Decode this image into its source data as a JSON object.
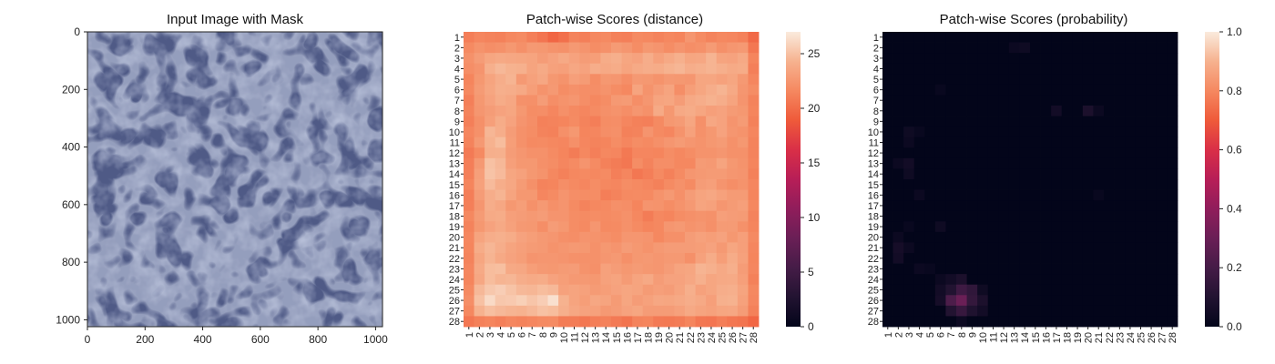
{
  "chart_data": [
    {
      "type": "image",
      "title": "Input Image with Mask",
      "x_ticks": [
        0,
        200,
        400,
        600,
        800,
        1000
      ],
      "y_ticks": [
        0,
        200,
        400,
        600,
        800,
        1000
      ],
      "xlim": [
        0,
        1024
      ],
      "ylim": [
        0,
        1024
      ],
      "image_description": "blue leather texture",
      "colors": {
        "leather_base": "#4f5a86",
        "leather_crease": "#7e89b2",
        "leather_shadow": "#3a4470"
      }
    },
    {
      "type": "heatmap",
      "title": "Patch-wise Scores (distance)",
      "rows": [
        "1",
        "2",
        "3",
        "4",
        "5",
        "6",
        "7",
        "8",
        "9",
        "10",
        "11",
        "12",
        "13",
        "14",
        "15",
        "16",
        "17",
        "18",
        "19",
        "20",
        "21",
        "22",
        "23",
        "24",
        "25",
        "26",
        "27",
        "28"
      ],
      "cols": [
        "1",
        "2",
        "3",
        "4",
        "5",
        "6",
        "7",
        "8",
        "9",
        "10",
        "11",
        "12",
        "13",
        "14",
        "15",
        "16",
        "17",
        "18",
        "19",
        "20",
        "21",
        "22",
        "23",
        "24",
        "25",
        "26",
        "27",
        "28"
      ],
      "vmin": 0,
      "vmax": 27,
      "colorbar_ticks": [
        0,
        5,
        10,
        15,
        20,
        25
      ],
      "colormap": "rocket",
      "values": [
        [
          21.0,
          21.5,
          21.3,
          21.2,
          21.6,
          21.8,
          21.1,
          20.5,
          19.6,
          20.2,
          21.3,
          21.1,
          21.6,
          21.7,
          21.2,
          21.1,
          21.7,
          21.6,
          21.3,
          21.6,
          21.4,
          22.5,
          21.8,
          21.3,
          21.6,
          21.5,
          21.2,
          19.8
        ],
        [
          21.7,
          22.3,
          22.0,
          22.2,
          22.6,
          22.1,
          22.7,
          22.6,
          22.3,
          22.2,
          22.7,
          22.4,
          21.9,
          22.2,
          22.8,
          22.5,
          21.9,
          22.6,
          22.4,
          21.9,
          22.4,
          22.0,
          22.2,
          22.8,
          22.1,
          22.5,
          22.7,
          20.6
        ],
        [
          22.2,
          22.9,
          23.5,
          23.7,
          23.6,
          23.5,
          23.4,
          22.9,
          23.3,
          23.7,
          23.3,
          22.9,
          23.0,
          23.9,
          24.1,
          23.5,
          23.3,
          24.0,
          23.2,
          23.7,
          24.2,
          23.5,
          23.6,
          24.4,
          23.4,
          23.3,
          23.7,
          21.4
        ],
        [
          22.0,
          22.4,
          24.1,
          24.6,
          24.3,
          24.2,
          23.4,
          23.8,
          23.2,
          23.1,
          23.6,
          23.3,
          24.0,
          23.7,
          23.9,
          23.4,
          23.8,
          24.0,
          23.9,
          24.3,
          24.5,
          24.0,
          24.2,
          24.4,
          24.1,
          23.8,
          23.9,
          21.1
        ],
        [
          21.4,
          22.6,
          23.4,
          24.0,
          24.4,
          22.7,
          23.2,
          23.6,
          22.6,
          22.3,
          23.1,
          22.8,
          21.9,
          22.6,
          22.5,
          22.0,
          22.7,
          22.6,
          22.3,
          22.7,
          22.6,
          22.5,
          23.5,
          23.5,
          23.2,
          23.5,
          22.7,
          21.5
        ],
        [
          21.6,
          22.8,
          23.5,
          24.1,
          24.0,
          23.7,
          23.0,
          22.3,
          22.7,
          21.9,
          22.2,
          22.0,
          22.0,
          22.3,
          21.9,
          21.6,
          23.4,
          22.3,
          22.9,
          23.4,
          22.0,
          23.0,
          23.5,
          24.0,
          24.4,
          23.7,
          22.5,
          21.9
        ],
        [
          21.1,
          22.6,
          23.3,
          23.9,
          23.6,
          22.2,
          22.1,
          22.9,
          22.0,
          22.3,
          22.5,
          22.0,
          21.6,
          21.9,
          22.7,
          22.8,
          22.0,
          22.5,
          23.4,
          23.5,
          22.9,
          23.7,
          24.0,
          24.3,
          24.0,
          23.4,
          22.4,
          21.3
        ],
        [
          21.3,
          22.5,
          22.9,
          23.3,
          23.5,
          22.6,
          21.9,
          22.0,
          21.5,
          22.1,
          21.7,
          21.5,
          21.8,
          22.1,
          22.3,
          22.0,
          22.5,
          22.2,
          23.8,
          22.6,
          23.7,
          23.9,
          23.5,
          23.1,
          23.3,
          22.8,
          22.6,
          21.4
        ],
        [
          21.1,
          22.1,
          23.1,
          23.9,
          23.3,
          22.4,
          22.0,
          21.2,
          21.3,
          21.4,
          21.8,
          21.3,
          21.0,
          21.9,
          22.0,
          21.5,
          21.2,
          21.1,
          21.7,
          22.6,
          22.8,
          23.5,
          22.1,
          23.6,
          23.3,
          22.4,
          22.8,
          21.2
        ],
        [
          21.5,
          22.2,
          24.5,
          24.0,
          22.9,
          22.2,
          21.9,
          21.3,
          21.2,
          22.1,
          22.6,
          21.4,
          21.5,
          22.0,
          22.1,
          21.2,
          21.3,
          22.4,
          21.7,
          21.5,
          22.3,
          23.2,
          22.2,
          22.6,
          23.3,
          22.5,
          22.3,
          21.5
        ],
        [
          21.3,
          22.7,
          24.3,
          24.8,
          23.0,
          22.2,
          21.7,
          21.8,
          21.6,
          21.5,
          22.1,
          21.5,
          21.3,
          21.4,
          21.9,
          21.5,
          21.9,
          21.7,
          22.1,
          22.5,
          22.8,
          22.5,
          22.3,
          22.6,
          22.8,
          22.2,
          22.6,
          21.3
        ],
        [
          20.8,
          21.7,
          24.1,
          24.2,
          22.9,
          22.5,
          22.2,
          22.2,
          21.8,
          21.4,
          20.9,
          21.6,
          21.1,
          21.6,
          21.5,
          20.7,
          21.5,
          21.5,
          21.4,
          21.9,
          21.6,
          21.9,
          22.3,
          22.3,
          22.5,
          22.2,
          22.2,
          21.3
        ],
        [
          21.0,
          22.7,
          25.0,
          24.6,
          23.1,
          22.6,
          22.6,
          22.1,
          21.9,
          21.5,
          21.8,
          22.4,
          21.8,
          21.2,
          20.9,
          20.6,
          21.9,
          21.3,
          22.0,
          22.0,
          21.6,
          21.6,
          22.8,
          22.7,
          23.4,
          22.6,
          22.3,
          21.4
        ],
        [
          21.1,
          23.1,
          25.1,
          24.7,
          23.5,
          23.2,
          22.6,
          22.3,
          21.6,
          21.2,
          21.6,
          21.7,
          21.6,
          21.8,
          21.1,
          21.5,
          20.6,
          21.0,
          21.7,
          21.2,
          21.8,
          22.5,
          22.7,
          22.8,
          22.8,
          22.5,
          22.4,
          21.2
        ],
        [
          21.4,
          23.2,
          24.7,
          24.0,
          23.6,
          22.8,
          22.1,
          21.3,
          21.4,
          22.0,
          21.7,
          21.5,
          21.9,
          21.6,
          21.5,
          21.9,
          21.7,
          21.5,
          21.2,
          21.8,
          22.2,
          21.8,
          22.9,
          23.1,
          22.4,
          22.0,
          22.3,
          21.5
        ],
        [
          21.0,
          22.9,
          24.0,
          24.4,
          23.4,
          22.6,
          22.6,
          21.5,
          21.8,
          22.4,
          22.0,
          21.9,
          21.9,
          21.0,
          21.3,
          21.7,
          21.8,
          21.7,
          22.3,
          22.7,
          22.1,
          22.9,
          23.4,
          23.6,
          23.2,
          22.8,
          22.8,
          21.4
        ],
        [
          21.1,
          22.5,
          24.0,
          23.6,
          22.6,
          23.0,
          22.2,
          22.7,
          22.1,
          22.4,
          21.8,
          21.3,
          21.6,
          21.7,
          22.1,
          22.0,
          21.4,
          22.4,
          22.3,
          21.9,
          22.3,
          22.7,
          23.4,
          23.2,
          22.5,
          22.8,
          23.1,
          21.6
        ],
        [
          21.6,
          22.8,
          23.8,
          23.9,
          23.1,
          22.9,
          22.7,
          22.9,
          22.4,
          22.4,
          21.9,
          21.8,
          21.9,
          21.8,
          21.9,
          22.2,
          21.6,
          20.9,
          21.6,
          21.4,
          21.9,
          22.1,
          22.3,
          22.2,
          23.1,
          22.9,
          22.8,
          21.3
        ],
        [
          21.3,
          22.6,
          23.3,
          23.7,
          23.2,
          22.7,
          22.6,
          22.0,
          22.9,
          22.6,
          21.9,
          21.7,
          22.5,
          21.7,
          21.8,
          22.2,
          21.8,
          21.4,
          21.6,
          22.5,
          22.7,
          22.3,
          22.5,
          22.1,
          22.8,
          22.8,
          22.2,
          21.4
        ],
        [
          21.5,
          23.4,
          24.0,
          24.2,
          23.9,
          23.3,
          23.0,
          22.7,
          22.5,
          22.1,
          22.0,
          22.4,
          22.3,
          22.1,
          21.9,
          22.5,
          22.5,
          22.4,
          21.6,
          22.1,
          22.1,
          22.9,
          23.2,
          23.0,
          23.3,
          22.6,
          23.1,
          21.7
        ],
        [
          21.4,
          23.9,
          24.5,
          24.0,
          23.4,
          23.1,
          22.8,
          22.7,
          22.3,
          22.5,
          22.7,
          22.6,
          22.2,
          22.6,
          22.4,
          22.9,
          22.6,
          22.3,
          22.7,
          22.9,
          22.9,
          22.9,
          23.0,
          23.3,
          22.7,
          23.5,
          23.1,
          21.5
        ],
        [
          21.3,
          23.5,
          24.4,
          23.7,
          23.3,
          23.0,
          22.4,
          22.5,
          22.5,
          22.4,
          22.2,
          22.2,
          22.2,
          22.5,
          22.7,
          22.1,
          22.6,
          22.7,
          22.5,
          22.7,
          22.7,
          22.1,
          23.2,
          23.9,
          23.0,
          23.9,
          23.2,
          21.4
        ],
        [
          21.5,
          23.8,
          24.8,
          24.9,
          23.7,
          23.6,
          23.0,
          22.7,
          22.6,
          22.8,
          22.9,
          22.3,
          22.1,
          23.2,
          22.9,
          22.6,
          22.8,
          22.6,
          22.5,
          22.9,
          23.4,
          23.5,
          24.4,
          24.2,
          23.7,
          24.1,
          22.9,
          21.5
        ],
        [
          21.4,
          23.6,
          24.8,
          24.4,
          24.5,
          24.0,
          23.8,
          23.9,
          23.3,
          23.0,
          22.7,
          22.7,
          22.6,
          23.2,
          23.4,
          22.8,
          23.4,
          23.7,
          22.9,
          23.3,
          23.3,
          23.6,
          24.2,
          23.5,
          23.7,
          23.8,
          23.1,
          21.2
        ],
        [
          21.7,
          24.6,
          25.3,
          25.6,
          25.1,
          24.6,
          24.5,
          24.8,
          24.6,
          23.2,
          23.4,
          23.2,
          22.8,
          23.0,
          23.3,
          23.5,
          23.4,
          22.8,
          23.1,
          22.9,
          23.4,
          24.1,
          23.2,
          23.5,
          24.0,
          24.1,
          23.4,
          21.6
        ],
        [
          22.0,
          25.0,
          26.2,
          25.3,
          25.4,
          25.7,
          25.2,
          25.6,
          26.5,
          24.3,
          23.4,
          23.0,
          23.6,
          23.4,
          22.8,
          23.5,
          22.9,
          23.2,
          23.6,
          23.5,
          23.7,
          24.0,
          23.7,
          23.1,
          24.2,
          24.3,
          23.2,
          21.5
        ],
        [
          21.6,
          24.3,
          24.9,
          24.6,
          24.4,
          24.3,
          24.6,
          25.0,
          24.8,
          24.1,
          23.6,
          23.3,
          23.2,
          22.7,
          22.9,
          23.3,
          23.5,
          22.9,
          22.9,
          22.9,
          23.2,
          23.7,
          23.4,
          23.2,
          23.5,
          23.6,
          22.9,
          21.2
        ],
        [
          20.6,
          21.2,
          21.4,
          21.1,
          21.5,
          21.3,
          21.5,
          21.7,
          21.8,
          20.9,
          20.9,
          20.6,
          21.0,
          21.2,
          20.8,
          20.4,
          21.3,
          21.4,
          20.8,
          20.7,
          20.9,
          21.4,
          20.6,
          20.5,
          21.0,
          20.6,
          20.4,
          19.6
        ]
      ]
    },
    {
      "type": "heatmap",
      "title": "Patch-wise Scores (probability)",
      "rows": [
        "1",
        "2",
        "3",
        "4",
        "5",
        "6",
        "7",
        "8",
        "9",
        "10",
        "11",
        "12",
        "13",
        "14",
        "15",
        "16",
        "17",
        "18",
        "19",
        "20",
        "21",
        "22",
        "23",
        "24",
        "25",
        "26",
        "27",
        "28"
      ],
      "cols": [
        "1",
        "2",
        "3",
        "4",
        "5",
        "6",
        "7",
        "8",
        "9",
        "10",
        "11",
        "12",
        "13",
        "14",
        "15",
        "16",
        "17",
        "18",
        "19",
        "20",
        "21",
        "22",
        "23",
        "24",
        "25",
        "26",
        "27",
        "28"
      ],
      "vmin": 0,
      "vmax": 1,
      "colorbar_ticks": [
        0.0,
        0.2,
        0.4,
        0.6,
        0.8,
        1.0
      ],
      "colorbar_tick_labels": [
        "0.0",
        "0.2",
        "0.4",
        "0.6",
        "0.8",
        "1.0"
      ],
      "colormap": "rocket",
      "background": 0.0,
      "hotspots": [
        {
          "r": 2,
          "c": 13,
          "v": 0.03
        },
        {
          "r": 2,
          "c": 14,
          "v": 0.04
        },
        {
          "r": 6,
          "c": 6,
          "v": 0.02
        },
        {
          "r": 8,
          "c": 17,
          "v": 0.05
        },
        {
          "r": 8,
          "c": 20,
          "v": 0.08
        },
        {
          "r": 8,
          "c": 21,
          "v": 0.03
        },
        {
          "r": 10,
          "c": 3,
          "v": 0.04
        },
        {
          "r": 10,
          "c": 4,
          "v": 0.02
        },
        {
          "r": 11,
          "c": 3,
          "v": 0.03
        },
        {
          "r": 13,
          "c": 2,
          "v": 0.03
        },
        {
          "r": 13,
          "c": 3,
          "v": 0.05
        },
        {
          "r": 14,
          "c": 3,
          "v": 0.04
        },
        {
          "r": 16,
          "c": 4,
          "v": 0.03
        },
        {
          "r": 16,
          "c": 21,
          "v": 0.02
        },
        {
          "r": 19,
          "c": 6,
          "v": 0.04
        },
        {
          "r": 19,
          "c": 3,
          "v": 0.02
        },
        {
          "r": 20,
          "c": 2,
          "v": 0.03
        },
        {
          "r": 21,
          "c": 2,
          "v": 0.06
        },
        {
          "r": 21,
          "c": 3,
          "v": 0.03
        },
        {
          "r": 22,
          "c": 2,
          "v": 0.05
        },
        {
          "r": 23,
          "c": 4,
          "v": 0.03
        },
        {
          "r": 23,
          "c": 5,
          "v": 0.02
        },
        {
          "r": 24,
          "c": 6,
          "v": 0.03
        },
        {
          "r": 24,
          "c": 7,
          "v": 0.05
        },
        {
          "r": 24,
          "c": 8,
          "v": 0.08
        },
        {
          "r": 25,
          "c": 6,
          "v": 0.05
        },
        {
          "r": 25,
          "c": 7,
          "v": 0.1
        },
        {
          "r": 25,
          "c": 8,
          "v": 0.18
        },
        {
          "r": 25,
          "c": 9,
          "v": 0.14
        },
        {
          "r": 25,
          "c": 10,
          "v": 0.04
        },
        {
          "r": 26,
          "c": 6,
          "v": 0.06
        },
        {
          "r": 26,
          "c": 7,
          "v": 0.22
        },
        {
          "r": 26,
          "c": 8,
          "v": 0.3
        },
        {
          "r": 26,
          "c": 9,
          "v": 0.15
        },
        {
          "r": 26,
          "c": 10,
          "v": 0.08
        },
        {
          "r": 27,
          "c": 7,
          "v": 0.1
        },
        {
          "r": 27,
          "c": 8,
          "v": 0.16
        },
        {
          "r": 27,
          "c": 9,
          "v": 0.09
        },
        {
          "r": 27,
          "c": 10,
          "v": 0.05
        },
        {
          "r": 28,
          "c": 8,
          "v": 0.03
        }
      ]
    }
  ]
}
